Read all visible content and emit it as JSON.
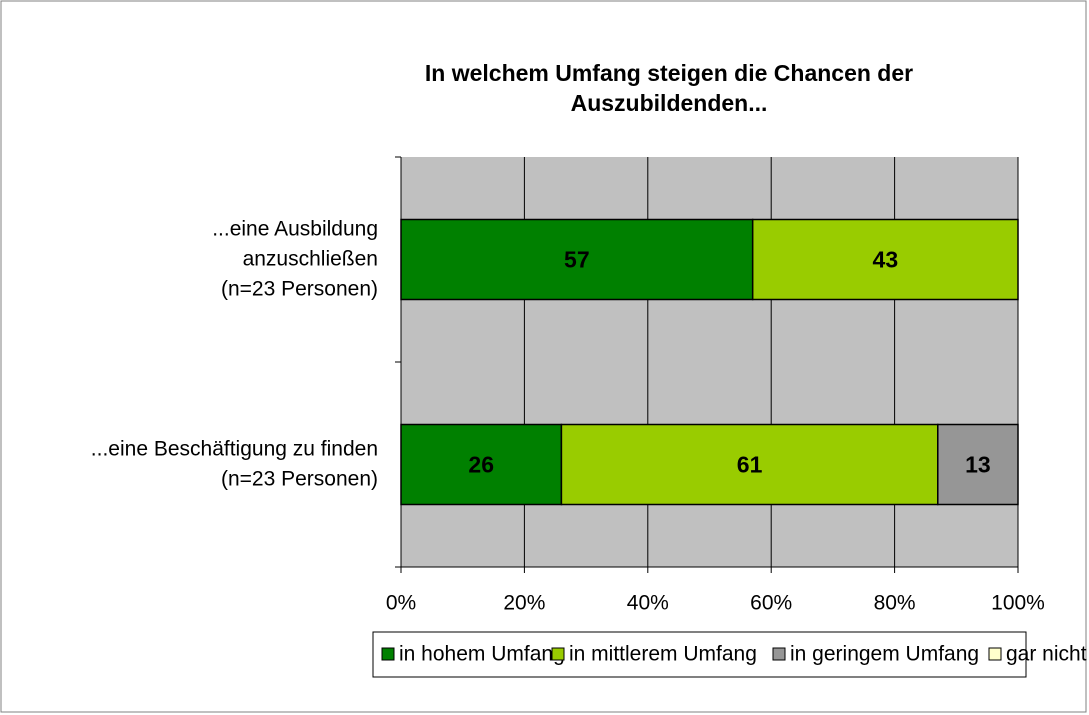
{
  "chart_data": {
    "type": "stacked-barh",
    "title": "In welchem Umfang steigen die Chancen der\nAuszubildenden...",
    "categories": [
      "...eine Ausbildung\nanzuschließen\n(n=23 Personen)",
      "...eine Beschäftigung zu finden\n(n=23 Personen)"
    ],
    "series": [
      {
        "name": "in hohem Umfang",
        "color": "#008000",
        "values": [
          57,
          26
        ]
      },
      {
        "name": "in mittlerem Umfang",
        "color": "#99cc00",
        "values": [
          43,
          61
        ]
      },
      {
        "name": "in geringem Umfang",
        "color": "#969696",
        "values": [
          null,
          13
        ]
      },
      {
        "name": "gar nicht",
        "color": "#ffffcc",
        "values": [
          null,
          null
        ]
      }
    ],
    "xlim": [
      0,
      100
    ],
    "xticks": [
      {
        "value": 0,
        "label": "0%"
      },
      {
        "value": 20,
        "label": "20%"
      },
      {
        "value": 40,
        "label": "40%"
      },
      {
        "value": 60,
        "label": "60%"
      },
      {
        "value": 80,
        "label": "80%"
      },
      {
        "value": 100,
        "label": "100%"
      }
    ],
    "grid": true,
    "legend": "bottom"
  }
}
